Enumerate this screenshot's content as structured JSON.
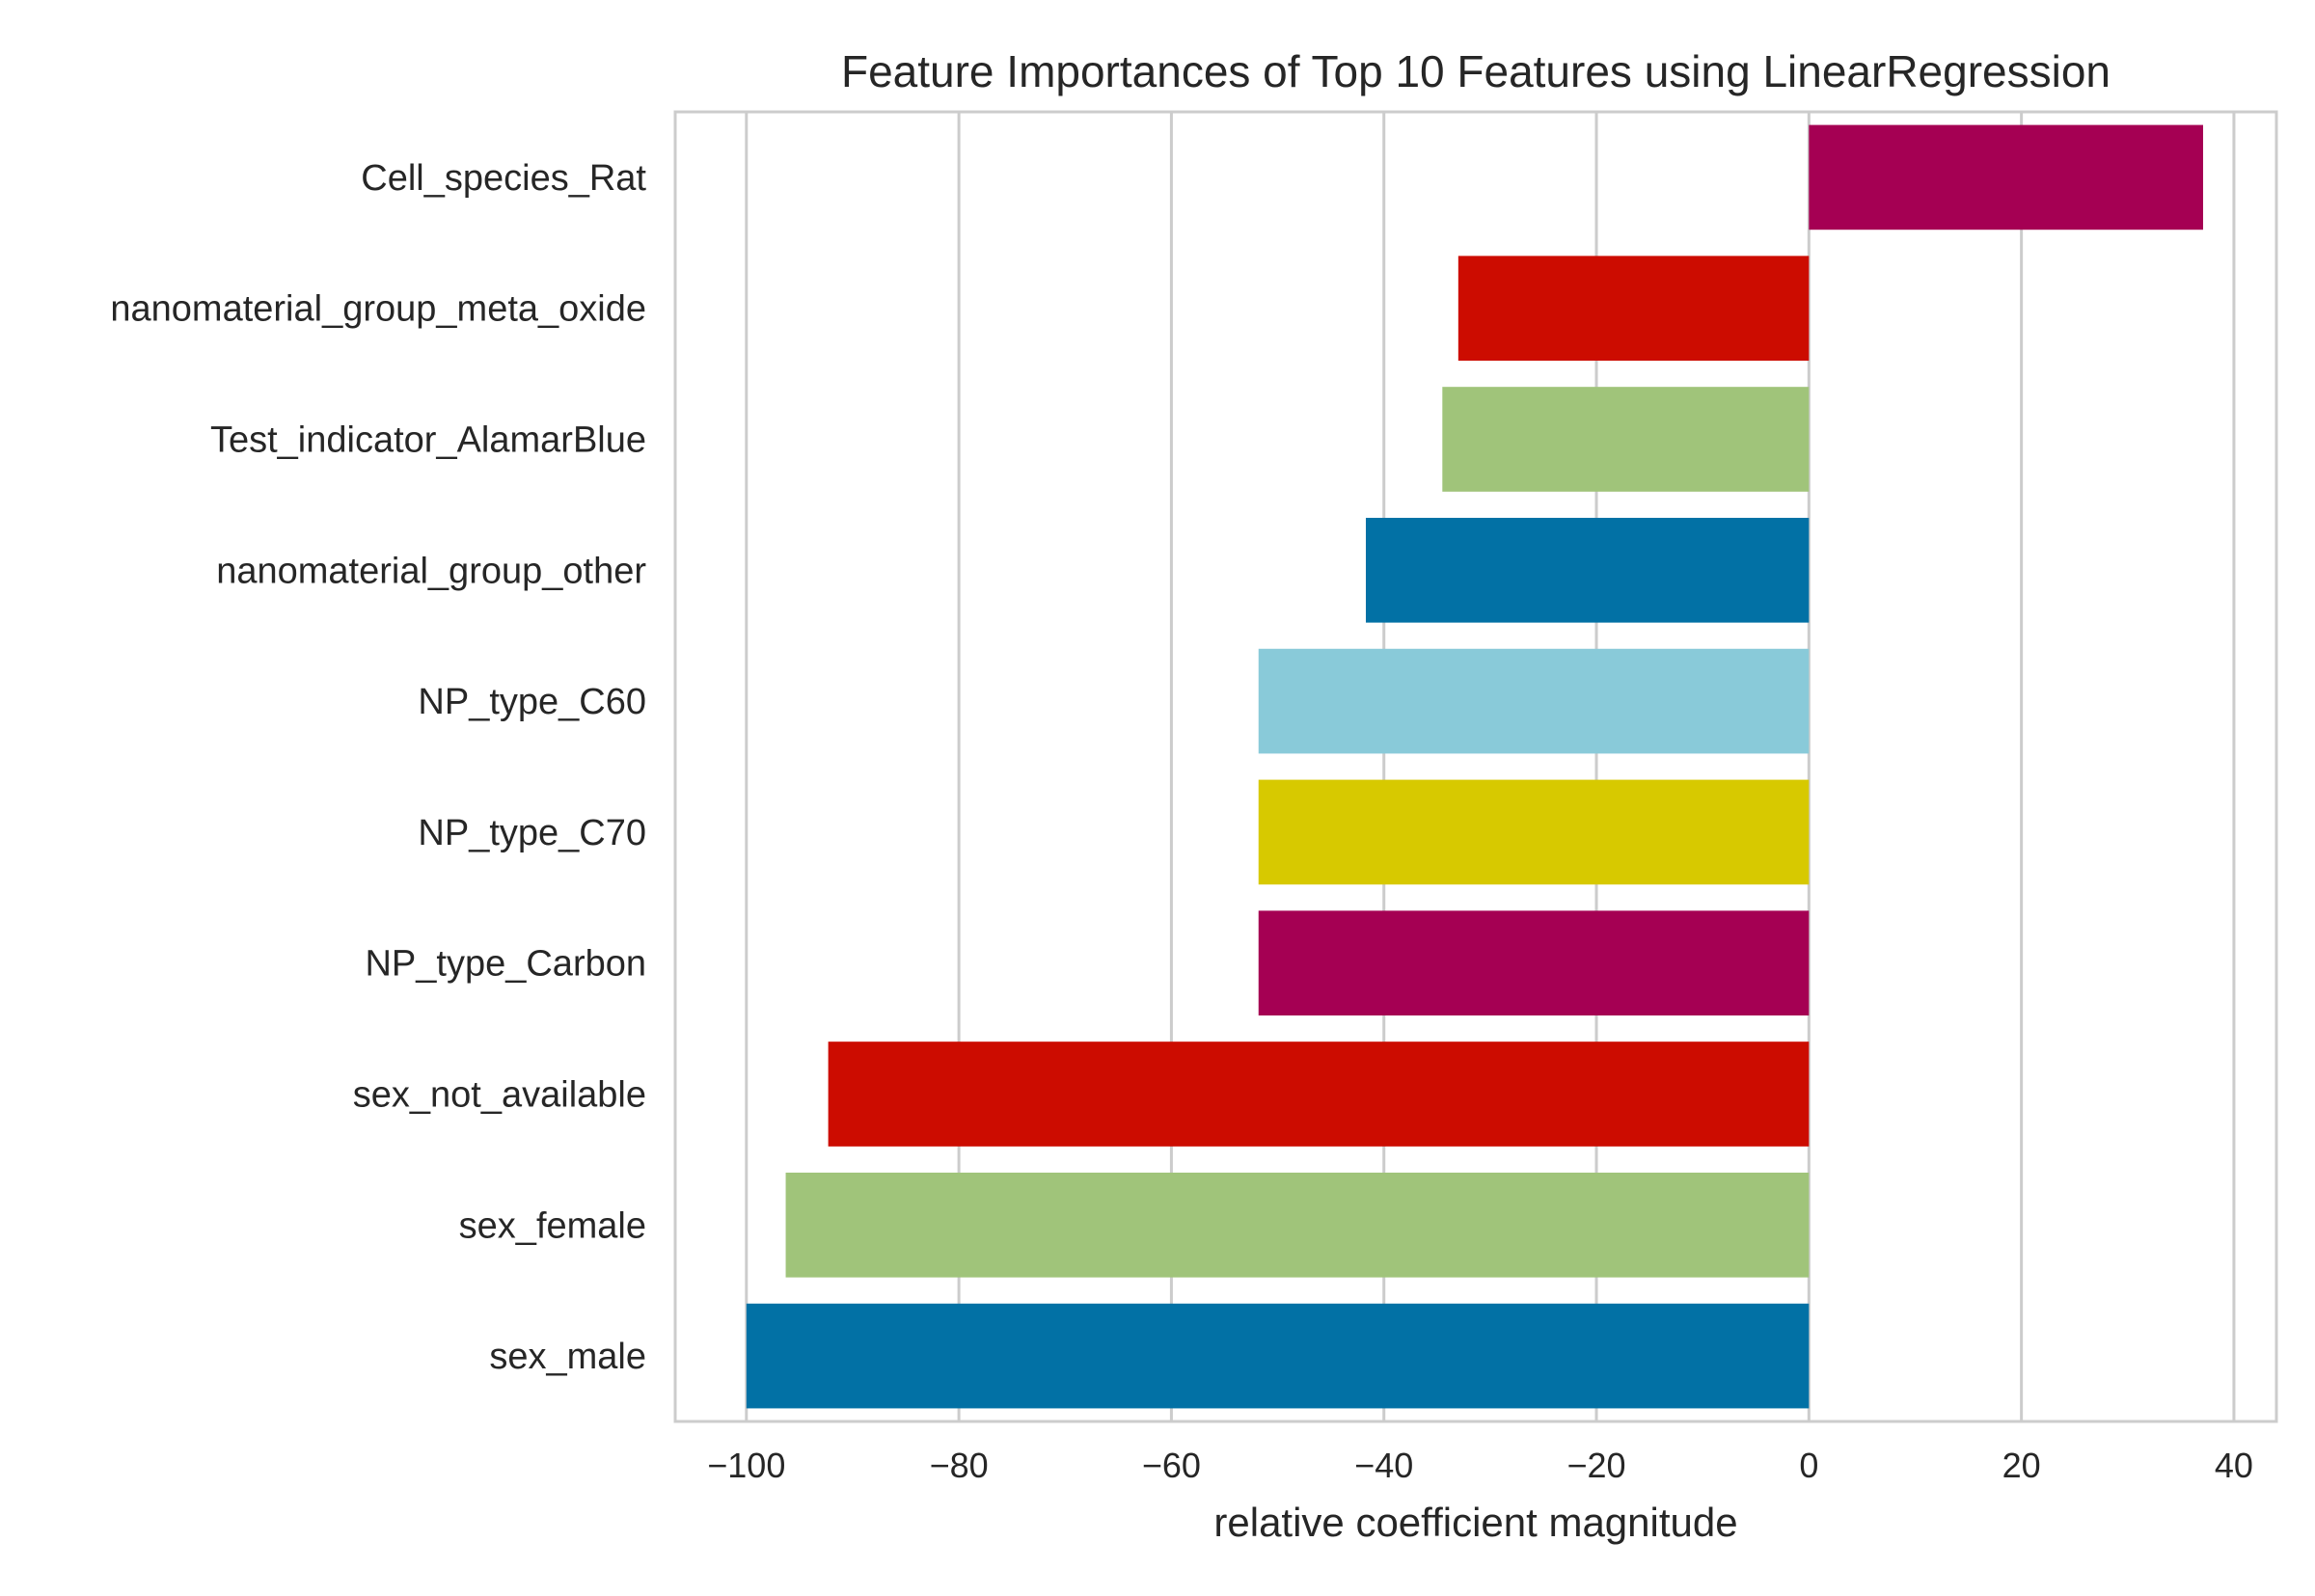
{
  "chart_data": {
    "type": "bar",
    "orientation": "horizontal",
    "title": "Feature Importances of Top 10 Features using LinearRegression",
    "xlabel": "relative coefficient magnitude",
    "ylabel": "",
    "xlim": [
      -106.7,
      44
    ],
    "xticks": [
      -100,
      -80,
      -60,
      -40,
      -20,
      0,
      20,
      40
    ],
    "xtick_labels": [
      "−100",
      "−80",
      "−60",
      "−40",
      "−20",
      "0",
      "20",
      "40"
    ],
    "grid": "vertical",
    "legend": "none",
    "categories": [
      "Cell_species_Rat",
      "nanomaterial_group_meta_oxide",
      "Test_indicator_AlamarBlue",
      "nanomaterial_group_other",
      "NP_type_C60",
      "NP_type_C70",
      "NP_type_Carbon",
      "sex_not_available",
      "sex_female",
      "sex_male"
    ],
    "values": [
      37.1,
      -33.0,
      -34.5,
      -41.7,
      -51.8,
      -51.8,
      -51.8,
      -92.3,
      -96.3,
      -100.0
    ],
    "colors": [
      "#a50053",
      "#cc0c00",
      "#a0c47a",
      "#0271a5",
      "#89cad9",
      "#d7c900",
      "#a50053",
      "#cc0c00",
      "#a0c47a",
      "#0271a5"
    ]
  }
}
